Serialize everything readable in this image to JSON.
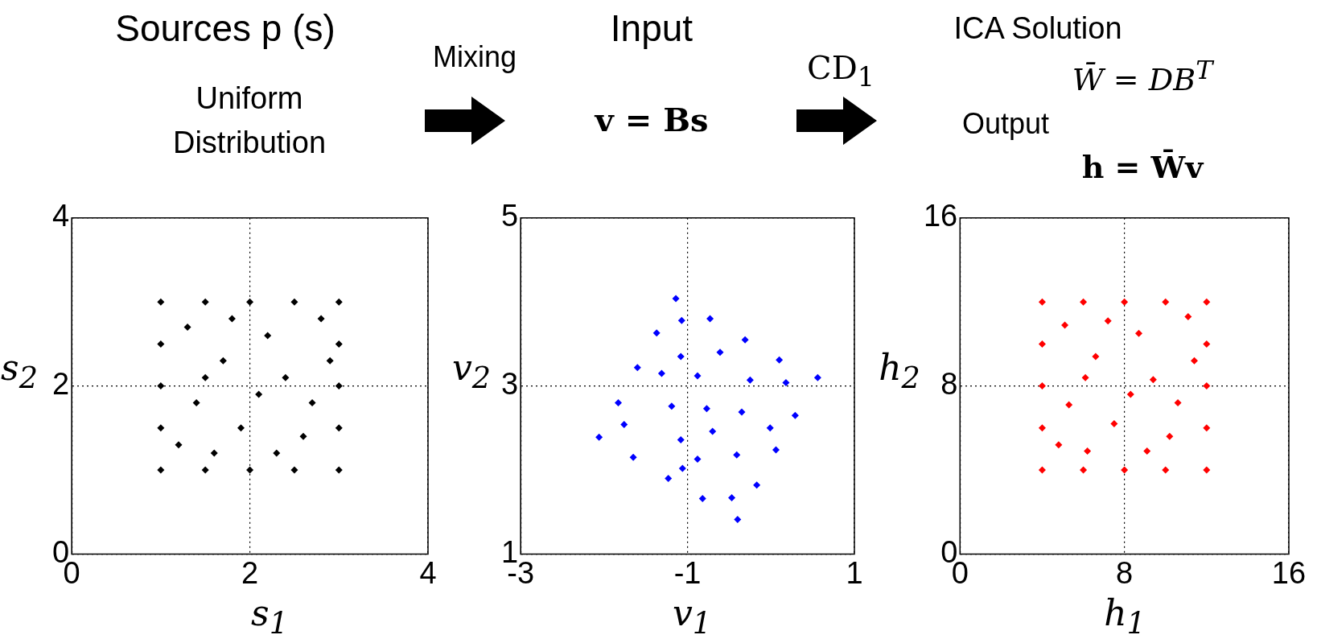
{
  "chart_data": [
    {
      "type": "scatter",
      "title": "Sources p (s)",
      "subtitle": "Uniform Distribution",
      "xlabel": "s$_{1}$",
      "ylabel": "s$_{2}$",
      "xlim": [
        0,
        4
      ],
      "ylim": [
        0,
        4
      ],
      "xticks": [
        0,
        2,
        4
      ],
      "yticks": [
        0,
        2,
        4
      ],
      "grid": true,
      "marker": "diamond",
      "x": [
        1,
        3,
        1,
        3,
        2,
        2,
        1,
        3,
        1.5,
        2.5,
        1.5,
        2.5,
        1,
        1,
        3,
        3,
        1.4,
        1.7,
        2.2,
        2.6,
        1.9,
        2.4,
        1.3,
        2.8,
        1.6,
        2.1,
        2.7,
        1.2,
        2.3,
        1.8,
        2.9,
        1.5
      ],
      "series": [
        {
          "color": "#000000",
          "values": [
            1,
            1,
            3,
            3,
            1,
            3,
            2,
            2,
            1,
            1,
            3,
            3,
            1.5,
            2.5,
            1.5,
            2.5,
            1.8,
            2.3,
            2.6,
            1.4,
            1.5,
            2.1,
            2.7,
            2.8,
            1.2,
            1.9,
            1.8,
            1.3,
            1.2,
            2.8,
            2.3,
            2.1
          ]
        }
      ]
    },
    {
      "type": "scatter",
      "title": "Input",
      "subtitle": "v = Bs",
      "annotations": [
        "Mixing"
      ],
      "xlabel": "v$_{1}$",
      "ylabel": "v$_{2}$",
      "xlim": [
        -3,
        1
      ],
      "ylim": [
        1,
        5
      ],
      "xticks": [
        -3,
        -1,
        1
      ],
      "yticks": [
        1,
        3,
        5
      ],
      "grid": true,
      "marker": "diamond",
      "x": [
        -2.06,
        -0.4,
        -1.14,
        0.56,
        -1.23,
        -1.6,
        0.06,
        -0.31,
        -1.65,
        -0.82,
        -1.83,
        -1.37,
        -0.17,
        0.29,
        -0.73,
        0.1,
        -1.19,
        -0.88,
        -1.08,
        -0.77,
        -0.41,
        -0.25,
        -0.61,
        -1.76,
        -0.01,
        -1.08,
        -1.31,
        -0.35,
        -0.88,
        0.18,
        -1.06,
        -0.47,
        -1.07,
        -0.7
      ],
      "series": [
        {
          "color": "#0000ff",
          "values": [
            2.39,
            1.41,
            4.04,
            3.1,
            1.9,
            3.22,
            2.24,
            3.55,
            2.15,
            1.66,
            2.8,
            3.63,
            1.82,
            2.65,
            3.8,
            3.31,
            2.76,
            2.13,
            3.35,
            2.73,
            2.18,
            3.07,
            3.4,
            2.54,
            2.5,
            2.36,
            3.15,
            2.69,
            3.12,
            3.04,
            2.02,
            1.67,
            3.78,
            2.46
          ]
        }
      ]
    },
    {
      "type": "scatter",
      "title": "ICA Solution",
      "subtitle": "W̄ = DB$^{T}$",
      "annotations": [
        "CD$_{1}$",
        "Output",
        "h = W̄v"
      ],
      "xlabel": "h$_{1}$",
      "ylabel": "h$_{2}$",
      "xlim": [
        0,
        16
      ],
      "ylim": [
        0,
        16
      ],
      "xticks": [
        0,
        8,
        16
      ],
      "yticks": [
        0,
        8,
        16
      ],
      "grid": true,
      "marker": "diamond",
      "x": [
        4,
        12,
        4,
        12,
        8,
        8,
        4,
        12,
        6,
        10,
        6,
        10,
        4,
        4,
        12,
        12,
        5.3,
        6.6,
        8.7,
        10.2,
        7.5,
        9.4,
        5.1,
        11.1,
        6.2,
        8.3,
        10.6,
        4.8,
        9.1,
        7.2,
        11.4,
        6.1
      ],
      "series": [
        {
          "color": "#ff0000",
          "values": [
            4,
            4,
            12,
            12,
            4,
            12,
            8,
            8,
            4,
            4,
            12,
            12,
            6,
            10,
            6,
            10,
            7.1,
            9.4,
            10.5,
            5.6,
            6.2,
            8.3,
            10.9,
            11.3,
            4.9,
            7.6,
            7.2,
            5.2,
            4.9,
            11.1,
            9.2,
            8.4
          ]
        }
      ]
    }
  ]
}
